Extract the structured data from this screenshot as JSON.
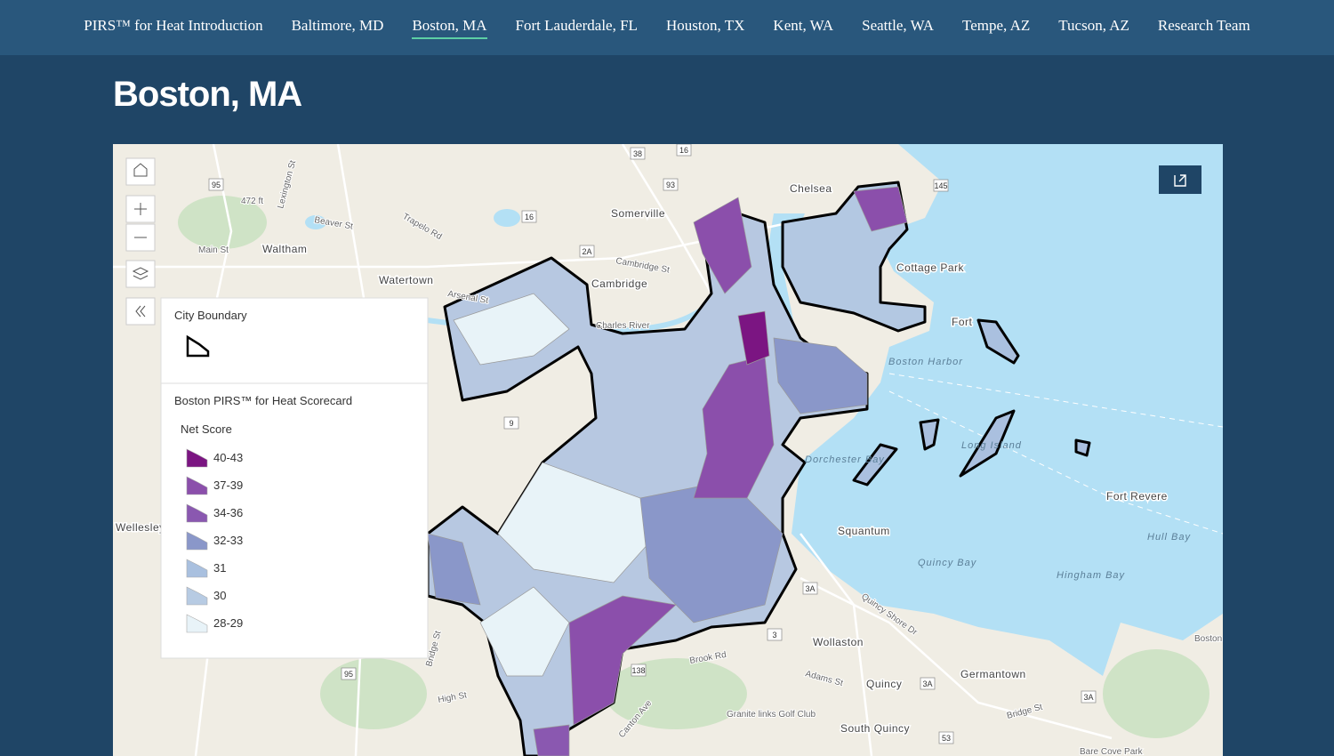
{
  "nav": {
    "items": [
      "PIRS™ for Heat Introduction",
      "Baltimore, MD",
      "Boston, MA",
      "Fort Lauderdale, FL",
      "Houston, TX",
      "Kent, WA",
      "Seattle, WA",
      "Tempe, AZ",
      "Tucson, AZ",
      "Research Team"
    ],
    "active": "Boston, MA"
  },
  "header": {
    "title": "Boston, MA"
  },
  "map": {
    "place_labels": [
      "Chelsea",
      "Somerville",
      "Waltham",
      "Watertown",
      "Cambridge",
      "Cottage Park",
      "Fort",
      "Boston Harbor",
      "Charles River",
      "Dorchester Bay",
      "Long Island",
      "Squantum",
      "Quincy Bay",
      "Hingham Bay",
      "Hull Bay",
      "Fort Revere",
      "Wollaston",
      "Quincy",
      "Germantown",
      "South Quincy",
      "Granite links Golf Club",
      "Wellesley",
      "Boston Islands Recrea",
      "Bare Cove Park"
    ],
    "road_labels": [
      "Lexington St",
      "Beaver St",
      "Trapelo Rd",
      "Main St",
      "Arsenal St",
      "Cambridge St",
      "Brook Rd",
      "High St",
      "Quincy Shore Dr",
      "Adams St",
      "Bridge St",
      "Canton Ave",
      "Bridge St",
      "472 ft"
    ],
    "route_shields": [
      "95",
      "38",
      "16",
      "93",
      "16",
      "2A",
      "145",
      "9",
      "3A",
      "3",
      "138",
      "95",
      "3A",
      "3A",
      "53"
    ],
    "legend": {
      "city_boundary_title": "City Boundary",
      "scorecard_title": "Boston PIRS™ for Heat Scorecard",
      "field": "Net Score",
      "classes": [
        {
          "label": "40-43",
          "color": "#7b1582"
        },
        {
          "label": "37-39",
          "color": "#8b4fab"
        },
        {
          "label": "34-36",
          "color": "#8a58b0"
        },
        {
          "label": "32-33",
          "color": "#8a97c9"
        },
        {
          "label": "31",
          "color": "#a9c0df"
        },
        {
          "label": "30",
          "color": "#b7cbe3"
        },
        {
          "label": "28-29",
          "color": "#e8f3f8"
        }
      ]
    }
  }
}
